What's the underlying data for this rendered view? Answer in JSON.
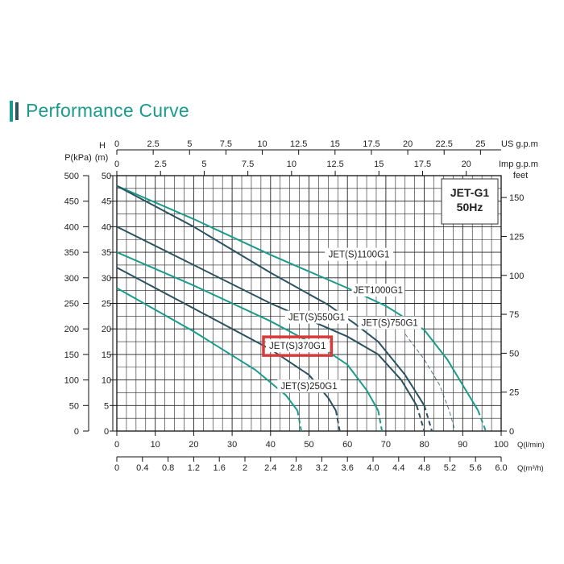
{
  "title": "Performance Curve",
  "colors": {
    "accent": "#1a9b8c",
    "dark": "#2b5260",
    "highlight": "#d83a3a",
    "grid": "#222222"
  },
  "chart_data": {
    "type": "line",
    "title": "Performance Curve",
    "model_label": "JET-G1",
    "frequency_label": "50Hz",
    "grid": true,
    "legend_position": "top-right",
    "axes": {
      "flow_lmin": {
        "label": "Q(l/min)",
        "ticks": [
          "0",
          "10",
          "20",
          "30",
          "40",
          "50",
          "60",
          "70",
          "80",
          "90",
          "100"
        ]
      },
      "flow_m3h": {
        "label": "Q(m³/h)",
        "ticks": [
          "0",
          "0.4",
          "0.8",
          "1.2",
          "1.6",
          "2",
          "2.4",
          "2.8",
          "3.2",
          "3.6",
          "4.0",
          "4.4",
          "4.8",
          "5.2",
          "5.6",
          "6.0"
        ]
      },
      "flow_us": {
        "label": "US  g.p.m",
        "ticks": [
          "0",
          "2.5",
          "5",
          "7.5",
          "10",
          "12.5",
          "15",
          "17.5",
          "20",
          "22.5",
          "25"
        ]
      },
      "flow_imp": {
        "label": "Imp  g.p.m",
        "ticks": [
          "0",
          "2.5",
          "5",
          "7.5",
          "10",
          "12.5",
          "15",
          "17.5",
          "20"
        ]
      },
      "head_m": {
        "label_top": "H",
        "label_unit": "(m)",
        "ticks": [
          "0",
          "5",
          "10",
          "15",
          "20",
          "25",
          "30",
          "35",
          "40",
          "45",
          "50"
        ]
      },
      "pressure_kpa": {
        "label": "P(kPa)",
        "ticks": [
          "0",
          "50",
          "100",
          "150",
          "200",
          "250",
          "300",
          "350",
          "400",
          "450",
          "500"
        ]
      },
      "head_feet": {
        "label": "feet",
        "ticks": [
          "0",
          "25",
          "50",
          "75",
          "100",
          "125",
          "150"
        ]
      }
    },
    "xlim": [
      0,
      100
    ],
    "ylim": [
      0,
      50
    ],
    "series": [
      {
        "name": "JET(S)1100G1",
        "color": "teal",
        "solid": [
          [
            0,
            48
          ],
          [
            20,
            41.5
          ],
          [
            40,
            34.5
          ],
          [
            60,
            28
          ],
          [
            70,
            24.5
          ],
          [
            80,
            19.8
          ],
          [
            86,
            14
          ],
          [
            90,
            9
          ],
          [
            94,
            4
          ]
        ],
        "dashed": [
          [
            94,
            4
          ],
          [
            96,
            0
          ]
        ]
      },
      {
        "name": "JET1000G1",
        "color": "dark",
        "solid": [
          [
            0,
            48
          ],
          [
            20,
            40
          ],
          [
            40,
            31
          ],
          [
            55,
            24.7
          ],
          [
            62,
            21
          ],
          [
            68,
            17.5
          ],
          [
            75,
            11
          ],
          [
            80,
            5
          ]
        ],
        "dashed": [
          [
            80,
            5
          ],
          [
            82,
            0
          ]
        ],
        "extension": [
          [
            75,
            19
          ],
          [
            80,
            14
          ],
          [
            84,
            9
          ],
          [
            86.5,
            4
          ],
          [
            88,
            0
          ]
        ]
      },
      {
        "name": "JET(S)750G1",
        "color": "dark",
        "solid": [
          [
            0,
            40
          ],
          [
            20,
            32.5
          ],
          [
            40,
            25
          ],
          [
            60,
            18.5
          ],
          [
            68,
            15
          ],
          [
            74,
            10
          ],
          [
            78,
            5
          ]
        ],
        "dashed": [
          [
            78,
            5
          ],
          [
            80,
            0
          ]
        ]
      },
      {
        "name": "JET(S)550G1",
        "color": "teal",
        "solid": [
          [
            0,
            35
          ],
          [
            20,
            28.5
          ],
          [
            40,
            21.5
          ],
          [
            55,
            15.5
          ],
          [
            60,
            13
          ],
          [
            65,
            8
          ],
          [
            68,
            4
          ]
        ],
        "dashed": [
          [
            68,
            4
          ],
          [
            69,
            0
          ]
        ]
      },
      {
        "name": "JET(S)370G1",
        "color": "dark",
        "solid": [
          [
            0,
            32
          ],
          [
            20,
            24
          ],
          [
            40,
            16
          ],
          [
            50,
            11
          ],
          [
            55,
            6.5
          ],
          [
            57,
            4
          ]
        ],
        "dashed": [
          [
            57,
            4
          ],
          [
            58,
            0
          ]
        ]
      },
      {
        "name": "JET(S)250G1",
        "color": "teal",
        "solid": [
          [
            0,
            28
          ],
          [
            20,
            19.5
          ],
          [
            36,
            12
          ],
          [
            44,
            7
          ],
          [
            47,
            4
          ]
        ],
        "dashed": [
          [
            47,
            4
          ],
          [
            48,
            0
          ]
        ]
      }
    ],
    "annotations": [
      {
        "text": "JET(S)1100G1",
        "x": 63,
        "y": 34.6
      },
      {
        "text": "JET1000G1",
        "x": 68,
        "y": 27.6
      },
      {
        "text": "JET(S)550G1",
        "x": 52,
        "y": 22.3
      },
      {
        "text": "JET(S)750G1",
        "x": 71,
        "y": 21.2
      },
      {
        "text": "JET(S)370G1",
        "x": 47,
        "y": 16.7,
        "highlighted": true
      },
      {
        "text": "JET(S)250G1",
        "x": 50,
        "y": 8.8
      }
    ]
  }
}
